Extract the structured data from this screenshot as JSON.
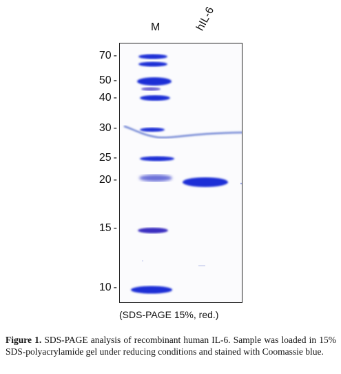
{
  "lanes": {
    "marker_label": "M",
    "sample_label": "hIL-6"
  },
  "markers": [
    "70",
    "50",
    "40",
    "30",
    "25",
    "20",
    "15",
    "10"
  ],
  "marker_unit_dash": "-",
  "condition_text": "(SDS-PAGE 15%, red.)",
  "caption": {
    "label": "Figure 1.",
    "text": "SDS-PAGE analysis of recombinant human IL-6. Sample was loaded in 15% SDS-polyacrylamide gel under reducing conditions and stained with Coomassie blue."
  },
  "colors": {
    "band": "#1a2fd6",
    "band_faint": "#6a6fd8",
    "gel_bg": "#fbfbfd"
  }
}
